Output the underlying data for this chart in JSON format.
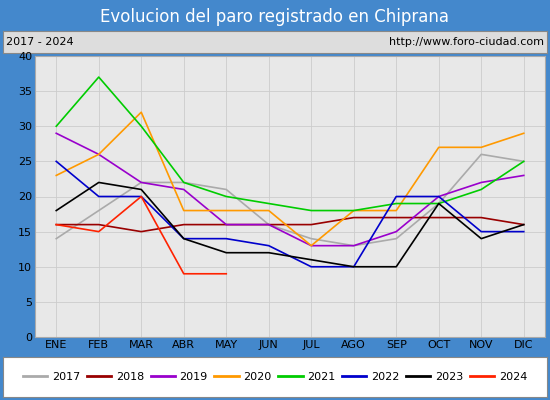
{
  "title": "Evolucion del paro registrado en Chiprana",
  "subtitle_left": "2017 - 2024",
  "subtitle_right": "http://www.foro-ciudad.com",
  "title_bg": "#5599dd",
  "months": [
    "ENE",
    "FEB",
    "MAR",
    "ABR",
    "MAY",
    "JUN",
    "JUL",
    "AGO",
    "SEP",
    "OCT",
    "NOV",
    "DIC"
  ],
  "ylim": [
    0,
    40
  ],
  "yticks": [
    0,
    5,
    10,
    15,
    20,
    25,
    30,
    35,
    40
  ],
  "series": {
    "2017": {
      "color": "#aaaaaa",
      "values": [
        14,
        18,
        22,
        22,
        21,
        16,
        14,
        13,
        14,
        19,
        26,
        25
      ]
    },
    "2018": {
      "color": "#990000",
      "values": [
        16,
        16,
        15,
        16,
        16,
        16,
        16,
        17,
        17,
        17,
        17,
        16
      ]
    },
    "2019": {
      "color": "#9900cc",
      "values": [
        29,
        26,
        22,
        21,
        16,
        16,
        13,
        13,
        15,
        20,
        22,
        23
      ]
    },
    "2020": {
      "color": "#ff9900",
      "values": [
        23,
        26,
        32,
        18,
        18,
        18,
        13,
        18,
        18,
        27,
        27,
        29
      ]
    },
    "2021": {
      "color": "#00cc00",
      "values": [
        30,
        37,
        30,
        22,
        20,
        19,
        18,
        18,
        19,
        19,
        21,
        25
      ]
    },
    "2022": {
      "color": "#0000cc",
      "values": [
        25,
        20,
        20,
        14,
        14,
        13,
        10,
        10,
        20,
        20,
        15,
        15
      ]
    },
    "2023": {
      "color": "#000000",
      "values": [
        18,
        22,
        21,
        14,
        12,
        12,
        11,
        10,
        10,
        19,
        14,
        16
      ]
    },
    "2024": {
      "color": "#ff2200",
      "values": [
        16,
        15,
        20,
        9,
        9,
        null,
        null,
        null,
        null,
        null,
        null,
        null
      ]
    }
  },
  "legend_order": [
    "2017",
    "2018",
    "2019",
    "2020",
    "2021",
    "2022",
    "2023",
    "2024"
  ],
  "border_color": "#4488cc",
  "plot_bg": "#e8e8e8",
  "grid_color": "#cccccc",
  "subtitle_bg": "#dddddd",
  "legend_bg": "white",
  "title_fontsize": 12,
  "tick_fontsize": 8,
  "legend_fontsize": 8,
  "line_width": 1.2
}
